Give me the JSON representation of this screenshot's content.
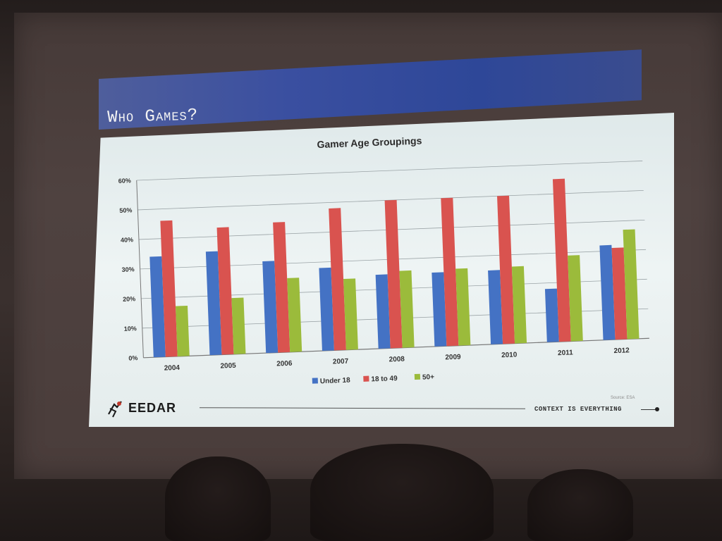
{
  "slide": {
    "title": "Who Games?",
    "footer": {
      "logo_text": "EEDAR",
      "logo_icon": "eedar-logo-icon",
      "tagline": "CONTEXT IS EVERYTHING",
      "source": "Source: ESA"
    }
  },
  "colors": {
    "under18": "#4472c4",
    "age18to49": "#d9534f",
    "age50plus": "#9bbb3b",
    "title_bar": "#2e4798"
  },
  "chart_data": {
    "type": "bar",
    "title": "Gamer Age Groupings",
    "categories": [
      "2004",
      "2005",
      "2006",
      "2007",
      "2008",
      "2009",
      "2010",
      "2011",
      "2012"
    ],
    "series": [
      {
        "name": "Under 18",
        "values": [
          34,
          35,
          31,
          28,
          25,
          25,
          25,
          18,
          32
        ]
      },
      {
        "name": "18 to 49",
        "values": [
          46,
          43,
          44,
          48,
          50,
          50,
          50,
          55,
          31
        ]
      },
      {
        "name": "50+",
        "values": [
          17,
          19,
          25,
          24,
          26,
          26,
          26,
          29,
          37
        ]
      }
    ],
    "yticks": [
      "0%",
      "10%",
      "20%",
      "30%",
      "40%",
      "50%",
      "60%"
    ],
    "ylim": [
      0,
      60
    ],
    "grid": true,
    "legend": "bottom-center"
  }
}
